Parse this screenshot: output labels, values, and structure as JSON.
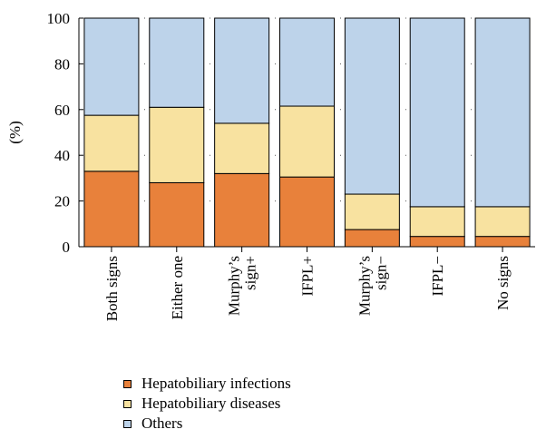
{
  "chart_data": {
    "type": "bar",
    "stacked": true,
    "ylabel": "(%)",
    "ylim": [
      0,
      100
    ],
    "yticks": [
      0,
      20,
      40,
      60,
      80,
      100
    ],
    "grid": "dotted horizontal",
    "legend_placement": "bottom",
    "categories": [
      "Both signs",
      "Either one",
      "Murphy’s sign+",
      "IFPL+",
      "Murphy’s sign−",
      "IFPL−",
      "No signs"
    ],
    "category_lines": [
      [
        "Both signs"
      ],
      [
        "Either one"
      ],
      [
        "Murphy’s",
        "sign+"
      ],
      [
        "IFPL+"
      ],
      [
        "Murphy’s",
        "sign−"
      ],
      [
        "IFPL−"
      ],
      [
        "No signs"
      ]
    ],
    "series": [
      {
        "name": "Hepatobiliary infections",
        "color": "#e8813b",
        "values": [
          33,
          28,
          32,
          30.5,
          7.5,
          4.5,
          4.5
        ]
      },
      {
        "name": "Hepatobiliary diseases",
        "color": "#f8e2a0",
        "values": [
          24.5,
          33,
          22,
          31,
          15.5,
          13,
          13
        ]
      },
      {
        "name": "Others",
        "color": "#bdd3ea",
        "values": [
          42.5,
          39,
          46,
          38.5,
          77,
          82.5,
          82.5
        ]
      }
    ]
  }
}
